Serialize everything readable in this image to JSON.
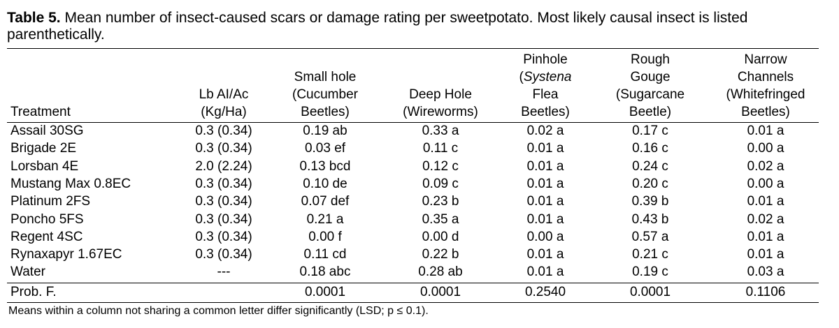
{
  "caption": {
    "label": "Table 5.",
    "text": " Mean number of insect-caused scars or damage rating per sweetpotato. Most likely causal insect is listed parenthetically."
  },
  "headers": {
    "treatment": "Treatment",
    "rate": [
      "Lb AI/Ac",
      "(Kg/Ha)"
    ],
    "small_hole": [
      "Small hole",
      "(Cucumber",
      "Beetles)"
    ],
    "deep_hole": [
      "Deep Hole",
      "(Wireworms)"
    ],
    "pinhole": [
      "Pinhole",
      "(",
      "Systena",
      "Flea",
      "Beetles)"
    ],
    "rough_gouge": [
      "Rough",
      "Gouge",
      "(Sugarcane",
      "Beetle)"
    ],
    "narrow_channels": [
      "Narrow",
      "Channels",
      "(Whitefringed",
      "Beetles)"
    ]
  },
  "rows": [
    [
      "Assail 30SG",
      "0.3 (0.34)",
      "0.19 ab",
      "0.33 a",
      "0.02 a",
      "0.17 c",
      "0.01 a"
    ],
    [
      "Brigade 2E",
      "0.3 (0.34)",
      "0.03 ef",
      "0.11 c",
      "0.01 a",
      "0.16 c",
      "0.00 a"
    ],
    [
      "Lorsban 4E",
      "2.0 (2.24)",
      "0.13 bcd",
      "0.12 c",
      "0.01 a",
      "0.24 c",
      "0.02 a"
    ],
    [
      "Mustang Max 0.8EC",
      "0.3 (0.34)",
      "0.10 de",
      "0.09 c",
      "0.01 a",
      "0.20 c",
      "0.00 a"
    ],
    [
      "Platinum 2FS",
      "0.3 (0.34)",
      "0.07 def",
      "0.23 b",
      "0.01 a",
      "0.39 b",
      "0.01 a"
    ],
    [
      "Poncho 5FS",
      "0.3 (0.34)",
      "0.21 a",
      "0.35 a",
      "0.01 a",
      "0.43 b",
      "0.02 a"
    ],
    [
      "Regent 4SC",
      "0.3 (0.34)",
      "0.00 f",
      "0.00 d",
      "0.00 a",
      "0.57 a",
      "0.01 a"
    ],
    [
      "Rynaxapyr 1.67EC",
      "0.3 (0.34)",
      "0.11 cd",
      "0.22 b",
      "0.01 a",
      "0.21 c",
      "0.01 a"
    ],
    [
      "Water",
      "---",
      "0.18 abc",
      "0.28 ab",
      "0.01 a",
      "0.19 c",
      "0.03 a"
    ]
  ],
  "prob_row": [
    "Prob. F.",
    "",
    "0.0001",
    "0.0001",
    "0.2540",
    "0.0001",
    "0.1106"
  ],
  "footnote": "Means within a column not sharing a common letter differ significantly (LSD; p ≤ 0.1)."
}
